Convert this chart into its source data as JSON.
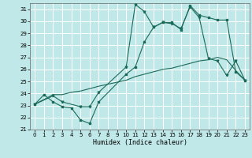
{
  "xlabel": "Humidex (Indice chaleur)",
  "bg_color": "#c0e8e8",
  "grid_color": "#ffffff",
  "line_color": "#1a6b5a",
  "xlim": [
    -0.5,
    23.5
  ],
  "ylim": [
    21,
    31.5
  ],
  "yticks": [
    21,
    22,
    23,
    24,
    25,
    26,
    27,
    28,
    29,
    30,
    31
  ],
  "xticks": [
    0,
    1,
    2,
    3,
    4,
    5,
    6,
    7,
    8,
    9,
    10,
    11,
    12,
    13,
    14,
    15,
    16,
    17,
    18,
    19,
    20,
    21,
    22,
    23
  ],
  "line1_x": [
    0,
    1,
    2,
    3,
    4,
    5,
    6,
    7,
    10,
    11,
    12,
    13,
    14,
    15,
    16,
    17,
    18,
    19,
    20,
    21,
    22,
    23
  ],
  "line1_y": [
    23.1,
    23.9,
    23.3,
    22.9,
    22.8,
    21.8,
    21.5,
    23.3,
    25.6,
    26.2,
    28.3,
    29.5,
    29.9,
    29.9,
    29.3,
    31.3,
    30.5,
    30.3,
    30.1,
    30.1,
    25.8,
    25.1
  ],
  "line2_x": [
    0,
    2,
    3,
    5,
    6,
    7,
    10,
    11,
    12,
    13,
    14,
    15,
    16,
    17,
    18,
    19,
    20,
    21,
    22,
    23
  ],
  "line2_y": [
    23.1,
    23.8,
    23.3,
    22.9,
    22.9,
    24.1,
    26.2,
    31.4,
    30.8,
    29.5,
    29.9,
    29.8,
    29.4,
    31.2,
    30.3,
    26.9,
    26.7,
    25.5,
    26.7,
    25.1
  ],
  "line3_x": [
    0,
    1,
    2,
    3,
    4,
    5,
    6,
    7,
    10,
    11,
    12,
    13,
    14,
    15,
    16,
    17,
    18,
    19,
    20,
    21,
    22,
    23
  ],
  "line3_y": [
    23.1,
    23.5,
    23.9,
    23.9,
    24.1,
    24.2,
    24.4,
    24.6,
    25.1,
    25.4,
    25.6,
    25.8,
    26.0,
    26.1,
    26.3,
    26.5,
    26.7,
    26.8,
    27.0,
    26.8,
    25.9,
    25.1
  ]
}
